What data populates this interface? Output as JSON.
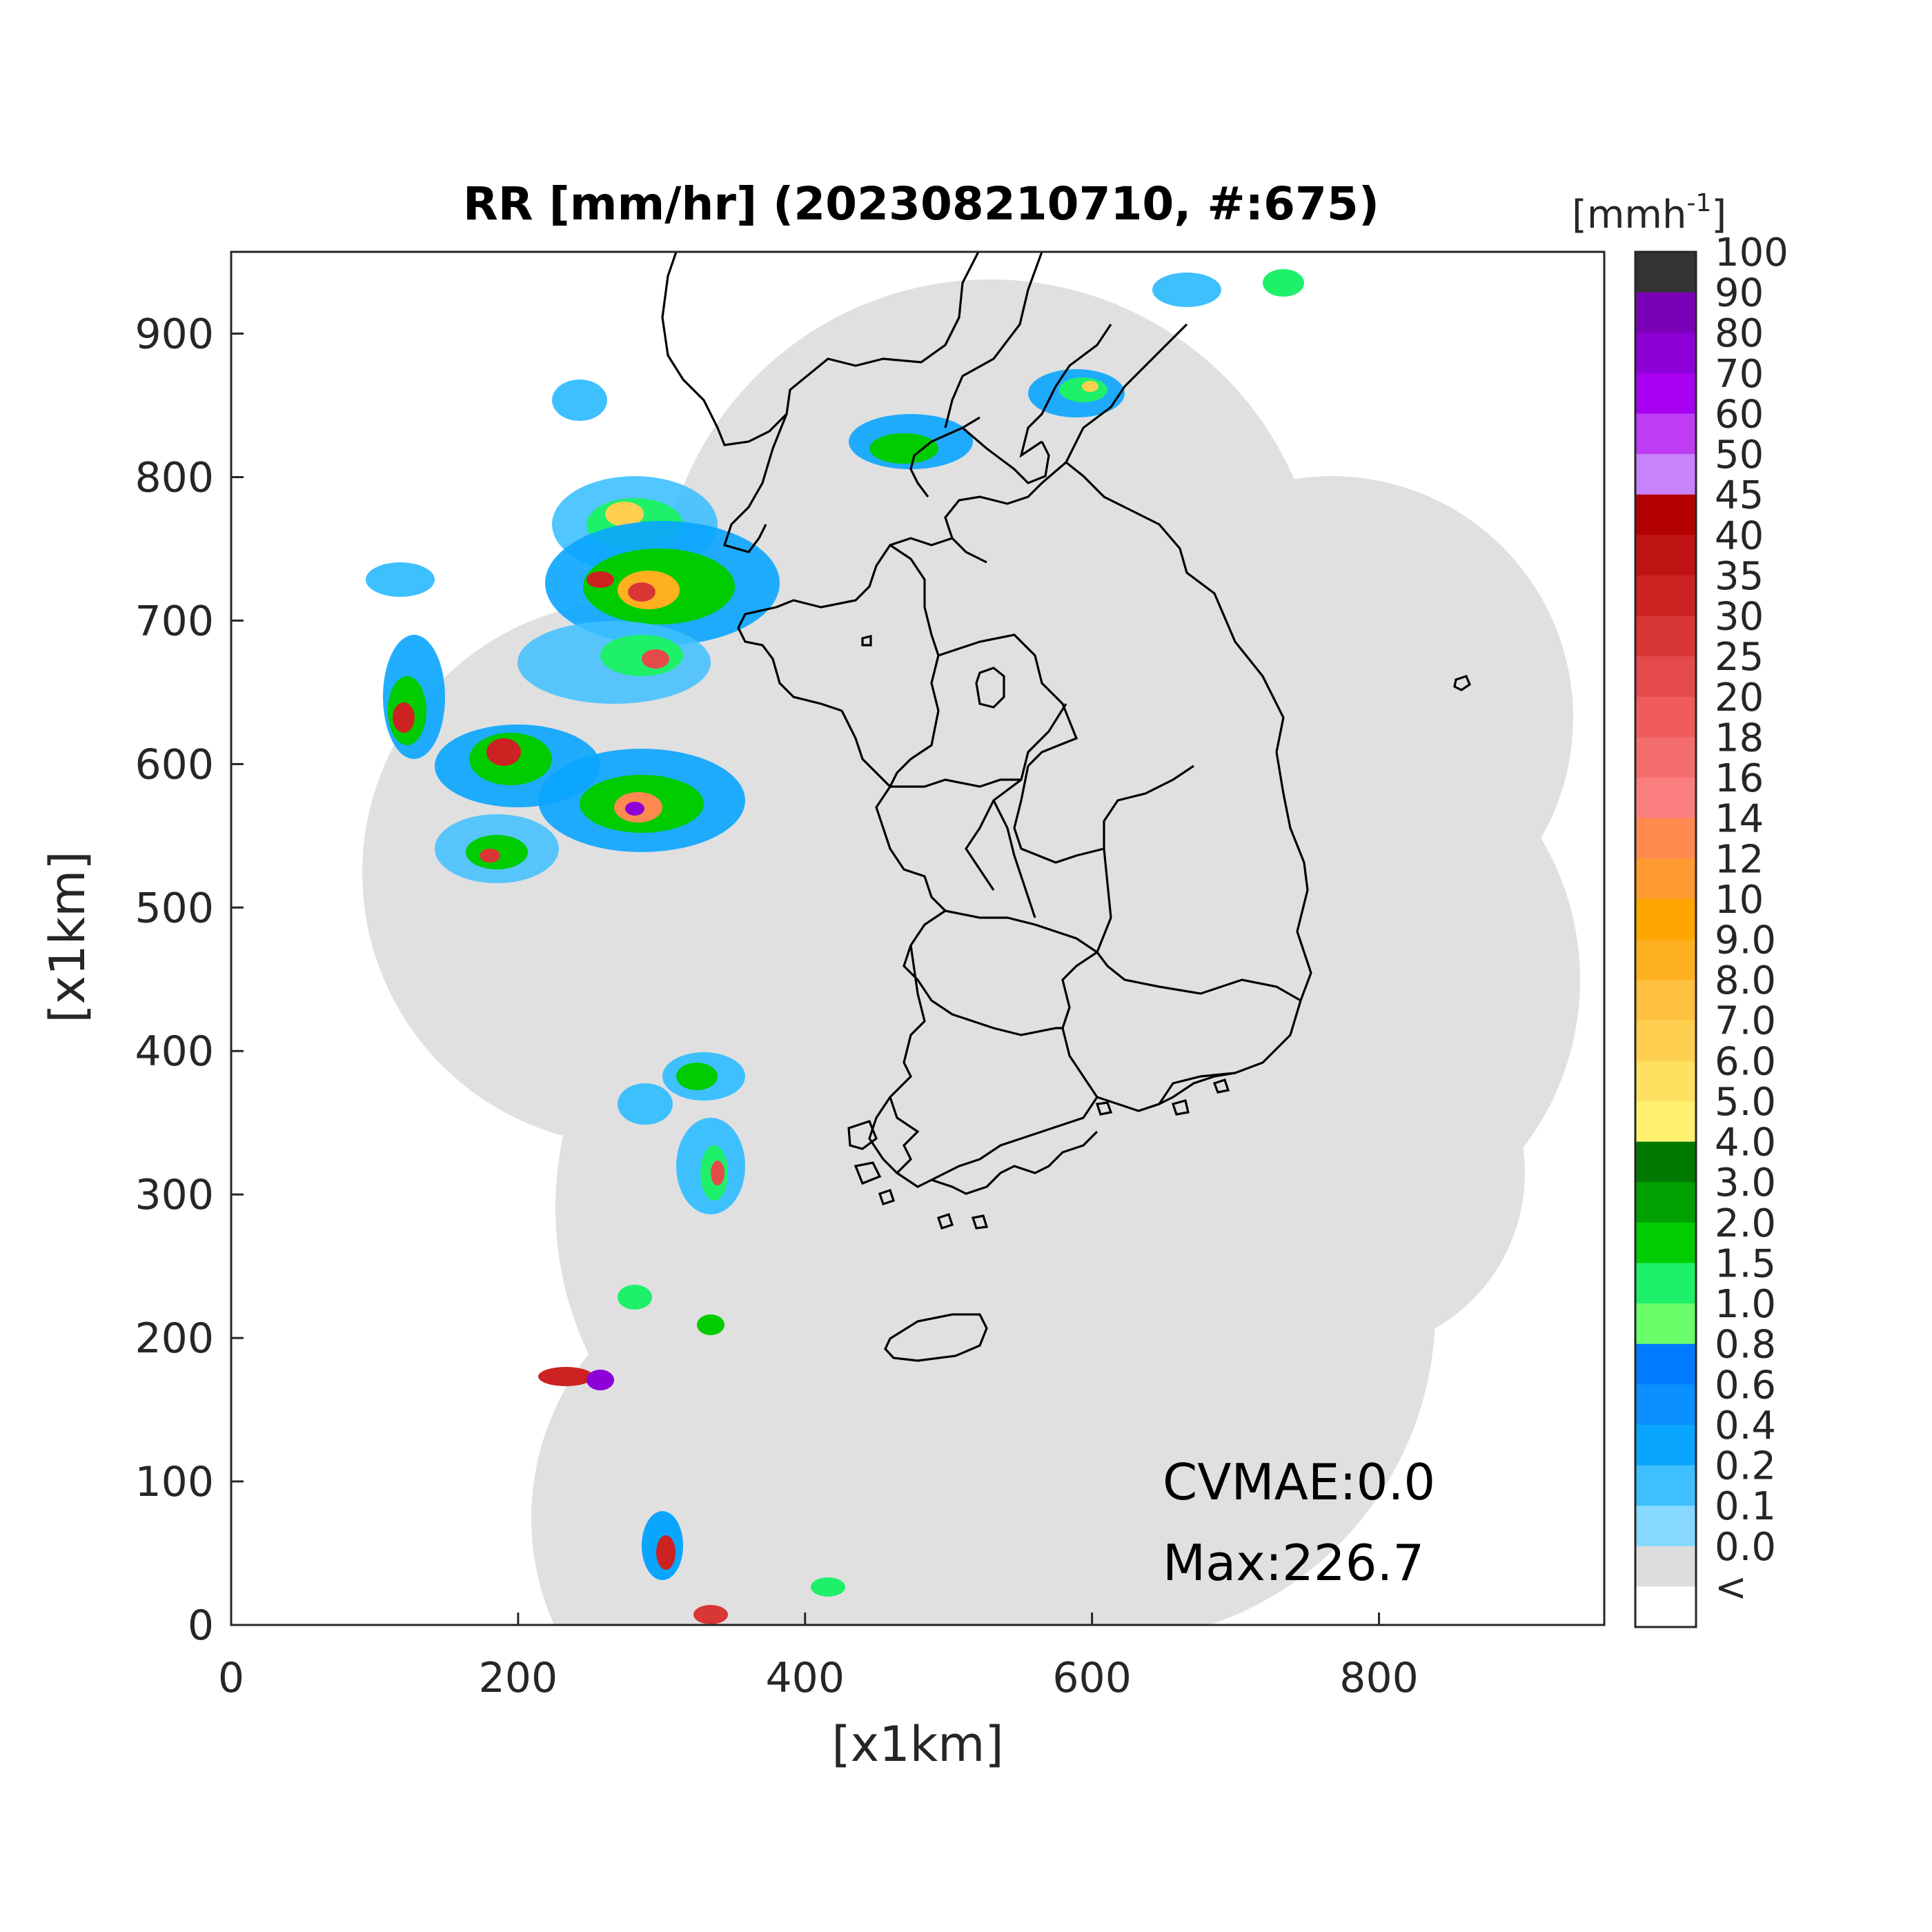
{
  "title": "RR [mm/hr] (202308210710, #:675)",
  "xlabel": "[x1km]",
  "ylabel": "[x1km]",
  "x_ticks": [
    "0",
    "200",
    "400",
    "600",
    "800"
  ],
  "y_ticks": [
    "0",
    "100",
    "200",
    "300",
    "400",
    "500",
    "600",
    "700",
    "800",
    "900"
  ],
  "colorbar": {
    "unit_base": "[mmh",
    "unit_sup": "-1",
    "unit_close": "]",
    "labels": [
      "100",
      "90",
      "80",
      "70",
      "60",
      "50",
      "45",
      "40",
      "35",
      "30",
      "25",
      "20",
      "18",
      "16",
      "14",
      "12",
      "10",
      "9.0",
      "8.0",
      "7.0",
      "6.0",
      "5.0",
      "4.0",
      "3.0",
      "2.0",
      "1.5",
      "1.0",
      "0.8",
      "0.6",
      "0.4",
      "0.2",
      "0.1",
      "0.0",
      "<"
    ],
    "colors": [
      "#333333",
      "#7a00b8",
      "#8d00d6",
      "#a800f2",
      "#bf3df5",
      "#c882fa",
      "#b30000",
      "#c01414",
      "#cc2222",
      "#d93636",
      "#e54a4a",
      "#f05c5c",
      "#f56e6e",
      "#fa7e7e",
      "#ff8a50",
      "#ff9a30",
      "#ffa500",
      "#ffb020",
      "#ffc040",
      "#ffd050",
      "#ffe060",
      "#fff070",
      "#007a00",
      "#00a000",
      "#00cc00",
      "#1ef06a",
      "#6aff6a",
      "#007aff",
      "#0a8fff",
      "#0aa5ff",
      "#3ec0ff",
      "#86d8ff",
      "#dddddd",
      "#ffffff"
    ]
  },
  "annotations": {
    "cvmae": "CVMAE:0.0",
    "max": "Max:226.7"
  },
  "map": {
    "radar_coverage_color": "#e0e0e0",
    "boundary_color": "#000000"
  }
}
